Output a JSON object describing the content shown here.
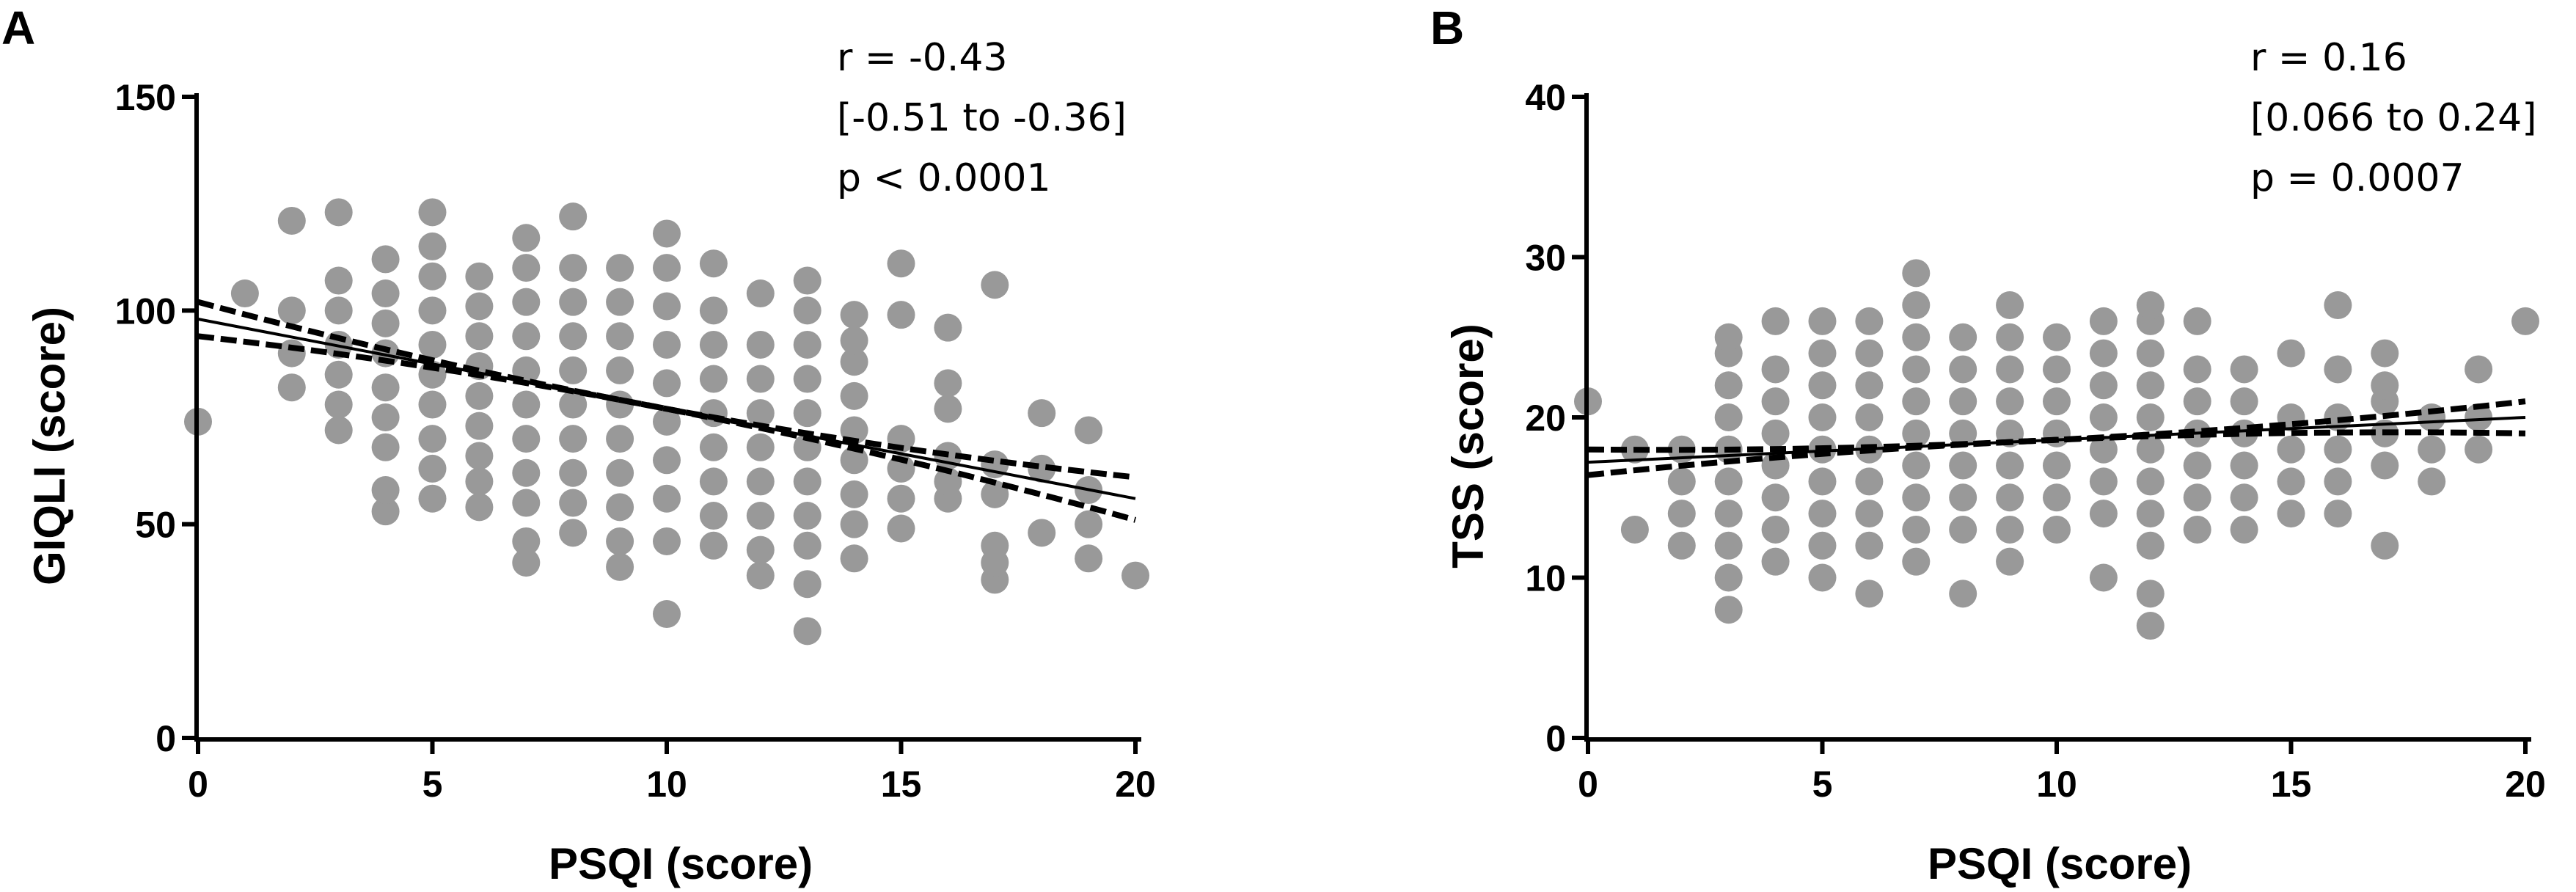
{
  "chart_data": [
    {
      "panel": "A",
      "type": "scatter",
      "xlabel": "PSQI (score)",
      "ylabel": "GIQLI (score)",
      "xlim": [
        0,
        20
      ],
      "ylim": [
        0,
        150
      ],
      "xticks": [
        0,
        5,
        10,
        15,
        20
      ],
      "yticks": [
        0,
        50,
        100,
        150
      ],
      "annotations": [
        "r = -0.43",
        "[-0.51 to -0.36]",
        "p < 0.0001"
      ],
      "fit": {
        "intercept": 98,
        "slope": -2.1,
        "ci_low": [
          94,
          51
        ],
        "ci_high": [
          102,
          61
        ]
      },
      "points": [
        [
          0,
          74
        ],
        [
          1,
          104
        ],
        [
          2,
          82
        ],
        [
          2,
          90
        ],
        [
          2,
          100
        ],
        [
          2,
          121
        ],
        [
          3,
          72
        ],
        [
          3,
          78
        ],
        [
          3,
          85
        ],
        [
          3,
          92
        ],
        [
          3,
          100
        ],
        [
          3,
          107
        ],
        [
          3,
          123
        ],
        [
          4,
          53
        ],
        [
          4,
          58
        ],
        [
          4,
          68
        ],
        [
          4,
          75
        ],
        [
          4,
          82
        ],
        [
          4,
          90
        ],
        [
          4,
          97
        ],
        [
          4,
          104
        ],
        [
          4,
          112
        ],
        [
          5,
          56
        ],
        [
          5,
          63
        ],
        [
          5,
          70
        ],
        [
          5,
          78
        ],
        [
          5,
          85
        ],
        [
          5,
          92
        ],
        [
          5,
          100
        ],
        [
          5,
          108
        ],
        [
          5,
          115
        ],
        [
          5,
          123
        ],
        [
          6,
          54
        ],
        [
          6,
          60
        ],
        [
          6,
          66
        ],
        [
          6,
          73
        ],
        [
          6,
          80
        ],
        [
          6,
          87
        ],
        [
          6,
          94
        ],
        [
          6,
          101
        ],
        [
          6,
          108
        ],
        [
          7,
          41
        ],
        [
          7,
          46
        ],
        [
          7,
          55
        ],
        [
          7,
          62
        ],
        [
          7,
          70
        ],
        [
          7,
          78
        ],
        [
          7,
          86
        ],
        [
          7,
          94
        ],
        [
          7,
          102
        ],
        [
          7,
          110
        ],
        [
          7,
          117
        ],
        [
          8,
          48
        ],
        [
          8,
          55
        ],
        [
          8,
          62
        ],
        [
          8,
          70
        ],
        [
          8,
          78
        ],
        [
          8,
          86
        ],
        [
          8,
          94
        ],
        [
          8,
          102
        ],
        [
          8,
          110
        ],
        [
          8,
          122
        ],
        [
          9,
          40
        ],
        [
          9,
          46
        ],
        [
          9,
          54
        ],
        [
          9,
          62
        ],
        [
          9,
          70
        ],
        [
          9,
          78
        ],
        [
          9,
          86
        ],
        [
          9,
          94
        ],
        [
          9,
          102
        ],
        [
          9,
          110
        ],
        [
          10,
          29
        ],
        [
          10,
          46
        ],
        [
          10,
          56
        ],
        [
          10,
          65
        ],
        [
          10,
          74
        ],
        [
          10,
          83
        ],
        [
          10,
          92
        ],
        [
          10,
          101
        ],
        [
          10,
          110
        ],
        [
          10,
          118
        ],
        [
          11,
          45
        ],
        [
          11,
          52
        ],
        [
          11,
          60
        ],
        [
          11,
          68
        ],
        [
          11,
          76
        ],
        [
          11,
          84
        ],
        [
          11,
          92
        ],
        [
          11,
          100
        ],
        [
          11,
          111
        ],
        [
          12,
          38
        ],
        [
          12,
          44
        ],
        [
          12,
          52
        ],
        [
          12,
          60
        ],
        [
          12,
          68
        ],
        [
          12,
          76
        ],
        [
          12,
          84
        ],
        [
          12,
          92
        ],
        [
          12,
          104
        ],
        [
          13,
          25
        ],
        [
          13,
          36
        ],
        [
          13,
          45
        ],
        [
          13,
          52
        ],
        [
          13,
          60
        ],
        [
          13,
          68
        ],
        [
          13,
          76
        ],
        [
          13,
          84
        ],
        [
          13,
          92
        ],
        [
          13,
          100
        ],
        [
          13,
          107
        ],
        [
          14,
          42
        ],
        [
          14,
          50
        ],
        [
          14,
          57
        ],
        [
          14,
          65
        ],
        [
          14,
          72
        ],
        [
          14,
          80
        ],
        [
          14,
          88
        ],
        [
          14,
          93
        ],
        [
          14,
          99
        ],
        [
          15,
          49
        ],
        [
          15,
          56
        ],
        [
          15,
          63
        ],
        [
          15,
          70
        ],
        [
          15,
          99
        ],
        [
          15,
          111
        ],
        [
          16,
          56
        ],
        [
          16,
          60
        ],
        [
          16,
          66
        ],
        [
          16,
          77
        ],
        [
          16,
          83
        ],
        [
          16,
          96
        ],
        [
          17,
          37
        ],
        [
          17,
          41
        ],
        [
          17,
          45
        ],
        [
          17,
          57
        ],
        [
          17,
          64
        ],
        [
          17,
          106
        ],
        [
          18,
          48
        ],
        [
          18,
          63
        ],
        [
          18,
          76
        ],
        [
          19,
          42
        ],
        [
          19,
          50
        ],
        [
          19,
          58
        ],
        [
          19,
          72
        ],
        [
          20,
          38
        ]
      ]
    },
    {
      "panel": "B",
      "type": "scatter",
      "xlabel": "PSQI (score)",
      "ylabel": "TSS (score)",
      "xlim": [
        0,
        20
      ],
      "ylim": [
        0,
        40
      ],
      "xticks": [
        0,
        5,
        10,
        15,
        20
      ],
      "yticks": [
        0,
        10,
        20,
        30,
        40
      ],
      "annotations": [
        "r = 0.16",
        "[0.066 to 0.24]",
        "p = 0.0007"
      ],
      "fit": {
        "intercept": 17.2,
        "slope": 0.14,
        "ci_low": [
          16.4,
          19.0
        ],
        "ci_high": [
          18.0,
          21.0
        ]
      },
      "points": [
        [
          0,
          21
        ],
        [
          1,
          13
        ],
        [
          1,
          18
        ],
        [
          2,
          12
        ],
        [
          2,
          14
        ],
        [
          2,
          16
        ],
        [
          2,
          18
        ],
        [
          3,
          8
        ],
        [
          3,
          10
        ],
        [
          3,
          12
        ],
        [
          3,
          14
        ],
        [
          3,
          16
        ],
        [
          3,
          18
        ],
        [
          3,
          20
        ],
        [
          3,
          22
        ],
        [
          3,
          24
        ],
        [
          3,
          25
        ],
        [
          4,
          11
        ],
        [
          4,
          13
        ],
        [
          4,
          15
        ],
        [
          4,
          17
        ],
        [
          4,
          19
        ],
        [
          4,
          21
        ],
        [
          4,
          23
        ],
        [
          4,
          26
        ],
        [
          5,
          10
        ],
        [
          5,
          12
        ],
        [
          5,
          14
        ],
        [
          5,
          16
        ],
        [
          5,
          18
        ],
        [
          5,
          20
        ],
        [
          5,
          22
        ],
        [
          5,
          24
        ],
        [
          5,
          26
        ],
        [
          6,
          9
        ],
        [
          6,
          12
        ],
        [
          6,
          14
        ],
        [
          6,
          16
        ],
        [
          6,
          18
        ],
        [
          6,
          20
        ],
        [
          6,
          22
        ],
        [
          6,
          24
        ],
        [
          6,
          26
        ],
        [
          7,
          11
        ],
        [
          7,
          13
        ],
        [
          7,
          15
        ],
        [
          7,
          17
        ],
        [
          7,
          19
        ],
        [
          7,
          21
        ],
        [
          7,
          23
        ],
        [
          7,
          25
        ],
        [
          7,
          27
        ],
        [
          7,
          29
        ],
        [
          8,
          9
        ],
        [
          8,
          13
        ],
        [
          8,
          15
        ],
        [
          8,
          17
        ],
        [
          8,
          19
        ],
        [
          8,
          21
        ],
        [
          8,
          23
        ],
        [
          8,
          25
        ],
        [
          9,
          11
        ],
        [
          9,
          13
        ],
        [
          9,
          15
        ],
        [
          9,
          17
        ],
        [
          9,
          19
        ],
        [
          9,
          21
        ],
        [
          9,
          23
        ],
        [
          9,
          25
        ],
        [
          9,
          27
        ],
        [
          10,
          13
        ],
        [
          10,
          15
        ],
        [
          10,
          17
        ],
        [
          10,
          19
        ],
        [
          10,
          21
        ],
        [
          10,
          23
        ],
        [
          10,
          25
        ],
        [
          11,
          10
        ],
        [
          11,
          14
        ],
        [
          11,
          16
        ],
        [
          11,
          18
        ],
        [
          11,
          20
        ],
        [
          11,
          22
        ],
        [
          11,
          24
        ],
        [
          11,
          26
        ],
        [
          12,
          7
        ],
        [
          12,
          9
        ],
        [
          12,
          12
        ],
        [
          12,
          14
        ],
        [
          12,
          16
        ],
        [
          12,
          18
        ],
        [
          12,
          20
        ],
        [
          12,
          22
        ],
        [
          12,
          24
        ],
        [
          12,
          26
        ],
        [
          12,
          27
        ],
        [
          13,
          13
        ],
        [
          13,
          15
        ],
        [
          13,
          17
        ],
        [
          13,
          19
        ],
        [
          13,
          21
        ],
        [
          13,
          23
        ],
        [
          13,
          26
        ],
        [
          14,
          13
        ],
        [
          14,
          15
        ],
        [
          14,
          17
        ],
        [
          14,
          19
        ],
        [
          14,
          21
        ],
        [
          14,
          23
        ],
        [
          15,
          14
        ],
        [
          15,
          16
        ],
        [
          15,
          18
        ],
        [
          15,
          20
        ],
        [
          15,
          24
        ],
        [
          16,
          14
        ],
        [
          16,
          16
        ],
        [
          16,
          18
        ],
        [
          16,
          20
        ],
        [
          16,
          23
        ],
        [
          16,
          27
        ],
        [
          17,
          12
        ],
        [
          17,
          17
        ],
        [
          17,
          19
        ],
        [
          17,
          21
        ],
        [
          17,
          22
        ],
        [
          17,
          24
        ],
        [
          18,
          16
        ],
        [
          18,
          18
        ],
        [
          18,
          20
        ],
        [
          19,
          18
        ],
        [
          19,
          20
        ],
        [
          19,
          23
        ],
        [
          20,
          26
        ]
      ]
    }
  ]
}
